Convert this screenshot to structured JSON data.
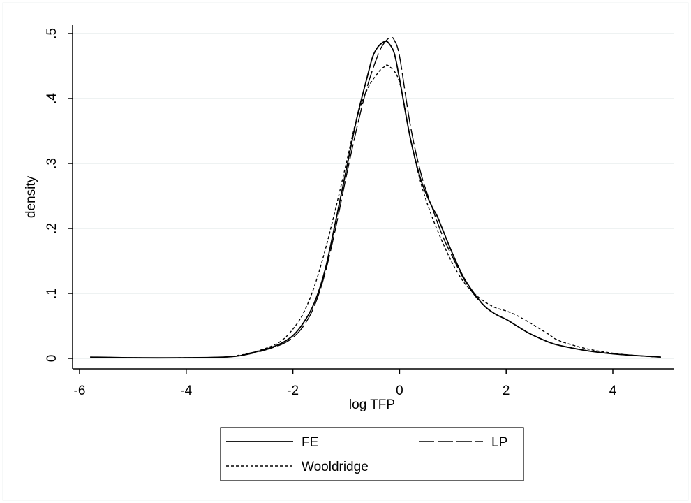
{
  "chart_data": {
    "type": "line",
    "title": "",
    "xlabel": "log TFP",
    "ylabel": "density",
    "xlim": [
      -6,
      5
    ],
    "ylim": [
      0,
      0.5
    ],
    "x_ticks": [
      -6,
      -4,
      -2,
      0,
      2,
      4
    ],
    "x_tick_labels": [
      "-6",
      "-4",
      "-2",
      "0",
      "2",
      "4"
    ],
    "y_ticks": [
      0,
      0.1,
      0.2,
      0.3,
      0.4,
      0.5
    ],
    "y_tick_labels": [
      "0",
      ".1",
      ".2",
      ".3",
      ".4",
      ".5"
    ],
    "grid": "horizontal",
    "legend_position": "bottom",
    "colors": {
      "line": "#000000",
      "grid": "#e8eeee",
      "border": "#000000"
    },
    "series": [
      {
        "name": "FE",
        "style": "solid",
        "x": [
          -5.8,
          -5.0,
          -4.0,
          -3.3,
          -3.0,
          -2.8,
          -2.6,
          -2.4,
          -2.2,
          -2.0,
          -1.8,
          -1.6,
          -1.4,
          -1.2,
          -1.0,
          -0.8,
          -0.6,
          -0.5,
          -0.4,
          -0.3,
          -0.25,
          -0.2,
          -0.1,
          0.0,
          0.2,
          0.4,
          0.6,
          0.7,
          0.8,
          1.0,
          1.2,
          1.4,
          1.6,
          1.8,
          2.0,
          2.2,
          2.4,
          2.6,
          2.8,
          3.0,
          3.5,
          4.0,
          4.5,
          4.9
        ],
        "y": [
          0.002,
          0.001,
          0.001,
          0.002,
          0.004,
          0.008,
          0.012,
          0.017,
          0.024,
          0.035,
          0.055,
          0.085,
          0.135,
          0.21,
          0.29,
          0.37,
          0.435,
          0.465,
          0.48,
          0.487,
          0.488,
          0.485,
          0.47,
          0.43,
          0.34,
          0.275,
          0.235,
          0.22,
          0.2,
          0.16,
          0.125,
          0.1,
          0.08,
          0.068,
          0.06,
          0.05,
          0.04,
          0.032,
          0.025,
          0.02,
          0.012,
          0.007,
          0.004,
          0.002
        ]
      },
      {
        "name": "LP",
        "style": "dashed",
        "x": [
          -5.8,
          -5.0,
          -4.0,
          -3.3,
          -3.0,
          -2.8,
          -2.6,
          -2.4,
          -2.2,
          -2.0,
          -1.8,
          -1.6,
          -1.4,
          -1.2,
          -1.0,
          -0.8,
          -0.6,
          -0.4,
          -0.3,
          -0.2,
          -0.15,
          -0.1,
          0.0,
          0.2,
          0.4,
          0.6,
          0.8,
          1.0,
          1.2,
          1.4,
          1.6,
          1.8,
          2.0,
          2.2,
          2.4,
          2.6,
          2.8,
          3.0,
          3.5,
          4.0,
          4.5,
          4.9
        ],
        "y": [
          0.002,
          0.001,
          0.001,
          0.002,
          0.004,
          0.007,
          0.011,
          0.016,
          0.022,
          0.032,
          0.05,
          0.08,
          0.13,
          0.2,
          0.28,
          0.355,
          0.42,
          0.468,
          0.484,
          0.493,
          0.494,
          0.49,
          0.465,
          0.36,
          0.285,
          0.235,
          0.19,
          0.155,
          0.123,
          0.098,
          0.08,
          0.068,
          0.06,
          0.05,
          0.04,
          0.032,
          0.025,
          0.02,
          0.012,
          0.007,
          0.004,
          0.002
        ]
      },
      {
        "name": "Wooldridge",
        "style": "dotted",
        "x": [
          -5.8,
          -5.0,
          -4.0,
          -3.3,
          -3.0,
          -2.8,
          -2.6,
          -2.4,
          -2.2,
          -2.0,
          -1.8,
          -1.6,
          -1.4,
          -1.2,
          -1.0,
          -0.8,
          -0.6,
          -0.4,
          -0.3,
          -0.2,
          0.0,
          0.2,
          0.4,
          0.6,
          0.8,
          1.0,
          1.2,
          1.4,
          1.6,
          1.8,
          2.0,
          2.2,
          2.4,
          2.6,
          2.8,
          3.0,
          3.5,
          4.0,
          4.5,
          4.9
        ],
        "y": [
          0.002,
          0.001,
          0.001,
          0.002,
          0.005,
          0.008,
          0.013,
          0.019,
          0.028,
          0.045,
          0.07,
          0.11,
          0.165,
          0.23,
          0.3,
          0.37,
          0.415,
          0.44,
          0.448,
          0.45,
          0.425,
          0.34,
          0.27,
          0.22,
          0.18,
          0.145,
          0.118,
          0.1,
          0.087,
          0.078,
          0.073,
          0.066,
          0.057,
          0.047,
          0.037,
          0.027,
          0.015,
          0.008,
          0.004,
          0.002
        ]
      }
    ]
  }
}
